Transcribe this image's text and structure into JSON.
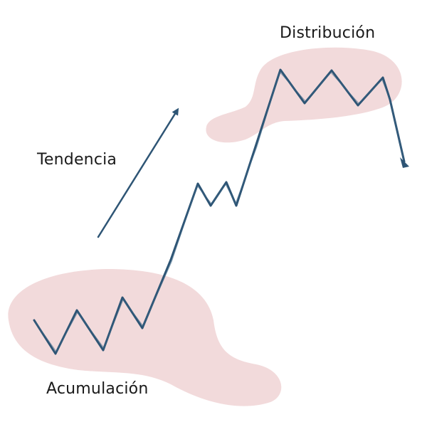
{
  "labels": {
    "distribution": "Distribución",
    "trend": "Tendencia",
    "accumulation": "Acumulación"
  },
  "colors": {
    "line": "#2e5575",
    "zone_fill": "#f2dadb",
    "text": "#1a1a1a",
    "background": "#ffffff"
  },
  "icons": {
    "trend_arrow": "arrow-up-right-icon",
    "breakdown_arrow": "arrow-down-icon"
  }
}
